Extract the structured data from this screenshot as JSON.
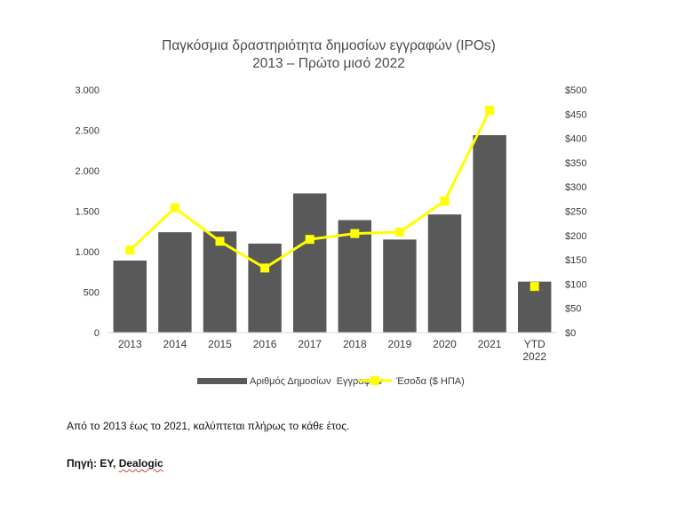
{
  "chart_data": {
    "type": "bar",
    "title": "Παγκόσμια δραστηριότητα δημοσίων εγγραφών (IPOs)",
    "subtitle": "2013 – Πρώτο μισό 2022",
    "categories": [
      "2013",
      "2014",
      "2015",
      "2016",
      "2017",
      "2018",
      "2019",
      "2020",
      "2021",
      "YTD 2022"
    ],
    "category_lines": [
      [
        "2013"
      ],
      [
        "2014"
      ],
      [
        "2015"
      ],
      [
        "2016"
      ],
      [
        "2017"
      ],
      [
        "2018"
      ],
      [
        "2019"
      ],
      [
        "2020"
      ],
      [
        "2021"
      ],
      [
        "YTD",
        "2022"
      ]
    ],
    "series": [
      {
        "name": "Αριθμός Δημοσίων  Εγγραφών",
        "type": "bar",
        "axis": "left",
        "color": "#595959",
        "values": [
          890,
          1240,
          1250,
          1100,
          1720,
          1390,
          1150,
          1460,
          2440,
          630
        ]
      },
      {
        "name": "Έσοδα ($ ΗΠΑ)",
        "type": "line",
        "axis": "right",
        "color": "#ffff00",
        "values": [
          170,
          257,
          188,
          133,
          192,
          204,
          207,
          271,
          458,
          95
        ]
      }
    ],
    "y_left": {
      "min": 0,
      "max": 3000,
      "ticks": [
        0,
        500,
        1000,
        1500,
        2000,
        2500,
        3000
      ],
      "tick_labels": [
        "0",
        "500",
        "1.000",
        "1.500",
        "2.000",
        "2.500",
        "3.000"
      ]
    },
    "y_right": {
      "min": 0,
      "max": 500,
      "ticks": [
        0,
        50,
        100,
        150,
        200,
        250,
        300,
        350,
        400,
        450,
        500
      ],
      "tick_labels": [
        "$0",
        "$50",
        "$100",
        "$150",
        "$200",
        "$250",
        "$300",
        "$350",
        "$400",
        "$450",
        "$500"
      ]
    },
    "grid": false,
    "legend_position": "bottom"
  },
  "note": "Από το 2013 έως το 2021, καλύπτεται πλήρως το κάθε έτος.",
  "source": {
    "prefix": "Πηγή: ΕΥ, ",
    "name": "Dealogic"
  }
}
